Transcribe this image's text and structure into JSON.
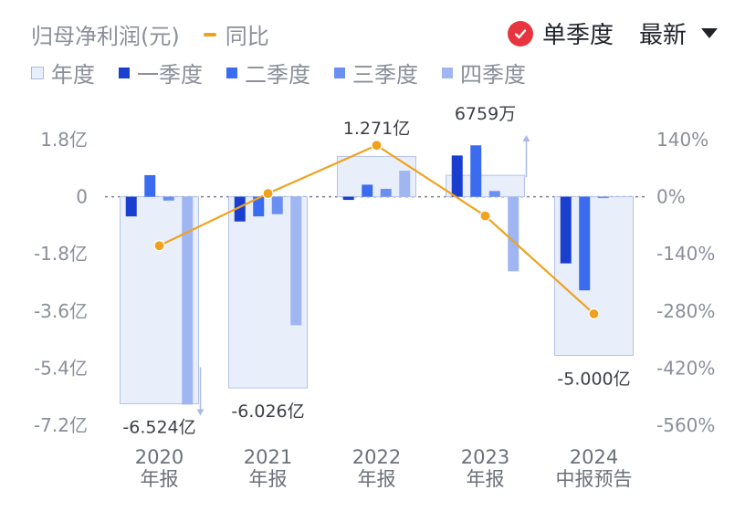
{
  "legend": {
    "metric_label": "归母净利润(元)",
    "yoy_label": "同比",
    "items": [
      {
        "label": "年度",
        "color": "#e9eefb"
      },
      {
        "label": "一季度",
        "color": "#1a3fcf"
      },
      {
        "label": "二季度",
        "color": "#3b6cf0"
      },
      {
        "label": "三季度",
        "color": "#6a8ff2"
      },
      {
        "label": "四季度",
        "color": "#9fb6f3"
      }
    ]
  },
  "controls": {
    "single_quarter_label": "单季度",
    "latest_label": "最新"
  },
  "chart_data": {
    "type": "bar",
    "categories": [
      "2020\n年报",
      "2021\n年报",
      "2022\n年报",
      "2023\n年报",
      "2024\n中报预告"
    ],
    "category_lines": [
      [
        "2020",
        "年报"
      ],
      [
        "2021",
        "年报"
      ],
      [
        "2022",
        "年报"
      ],
      [
        "2023",
        "年报"
      ],
      [
        "2024",
        "中报预告"
      ]
    ],
    "annual": [
      -6.524,
      -6.026,
      1.271,
      0.6759,
      -5.0
    ],
    "annual_labels": [
      "-6.524亿",
      "-6.026亿",
      "1.271亿",
      "6759万",
      "-5.000亿"
    ],
    "series": [
      {
        "name": "一季度",
        "color": "#1a3fcf",
        "values": [
          -0.62,
          -0.78,
          -0.1,
          1.3,
          -2.1
        ]
      },
      {
        "name": "二季度",
        "color": "#3b6cf0",
        "values": [
          0.68,
          -0.62,
          0.38,
          1.62,
          -2.95
        ]
      },
      {
        "name": "三季度",
        "color": "#6a8ff2",
        "values": [
          -0.12,
          -0.55,
          0.25,
          0.18,
          -0.02
        ]
      },
      {
        "name": "四季度",
        "color": "#9fb6f3",
        "values": [
          -6.55,
          -4.05,
          0.82,
          -2.35,
          null
        ]
      }
    ],
    "yoy": {
      "name": "同比",
      "color": "#f0a21e",
      "values": [
        -120,
        8,
        126,
        -47,
        -287
      ]
    },
    "y_left": {
      "ticks": [
        1.8,
        0,
        -1.8,
        -3.6,
        -5.4,
        -7.2
      ],
      "tick_labels": [
        "1.8亿",
        "0",
        "-1.8亿",
        "-3.6亿",
        "-5.4亿",
        "-7.2亿"
      ],
      "range": [
        -7.2,
        1.8
      ]
    },
    "y_right": {
      "ticks": [
        140,
        0,
        -140,
        -280,
        -420,
        -560
      ],
      "tick_labels": [
        "140%",
        "0%",
        "-140%",
        "-280%",
        "-420%",
        "-560%"
      ],
      "range": [
        -560,
        140
      ]
    }
  }
}
